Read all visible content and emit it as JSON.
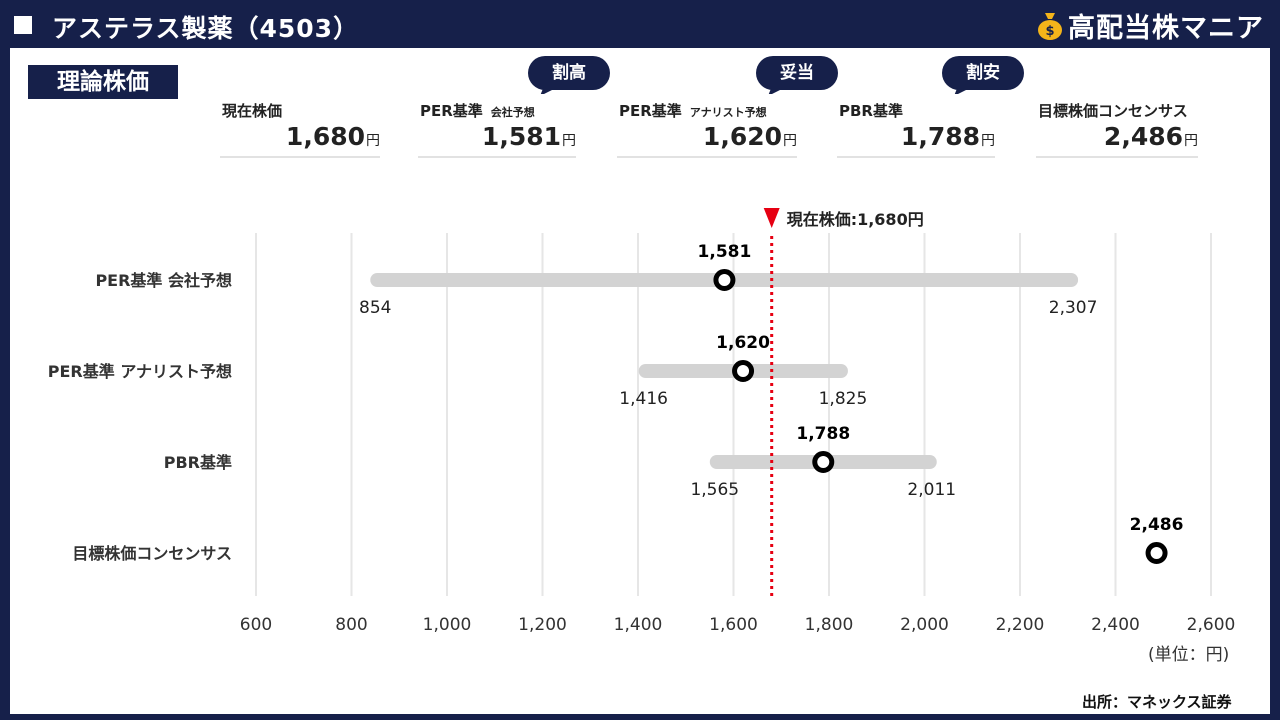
{
  "header": {
    "title": "アステラス製薬（4503）",
    "brand": "高配当株マニア",
    "brand_icon": "money-bag-icon"
  },
  "section_label": "理論株価",
  "metrics": [
    {
      "label": "現在株価",
      "sub": "",
      "value": "1,680",
      "unit": "円",
      "badge": ""
    },
    {
      "label": "PER基準",
      "sub": "会社予想",
      "value": "1,581",
      "unit": "円",
      "badge": "割高"
    },
    {
      "label": "PER基準",
      "sub": "アナリスト予想",
      "value": "1,620",
      "unit": "円",
      "badge": "妥当"
    },
    {
      "label": "PBR基準",
      "sub": "",
      "value": "1,788",
      "unit": "円",
      "badge": "割安"
    },
    {
      "label": "目標株価コンセンサス",
      "sub": "",
      "value": "2,486",
      "unit": "円",
      "badge": ""
    }
  ],
  "colors": {
    "navy": "#16204a",
    "range_bar": "#d3d3d3",
    "current_marker": "#e60012",
    "grid": "#e6e6e6"
  },
  "chart_data": {
    "type": "range",
    "xlim": [
      600,
      2600
    ],
    "xticks": [
      600,
      800,
      1000,
      1200,
      1400,
      1600,
      1800,
      2000,
      2200,
      2400,
      2600
    ],
    "xtick_labels": [
      "600",
      "800",
      "1,000",
      "1,200",
      "1,400",
      "1,600",
      "1,800",
      "2,000",
      "2,200",
      "2,400",
      "2,600"
    ],
    "current": {
      "value": 1680,
      "label": "現在株価:1,680円"
    },
    "series": [
      {
        "category": "PER基準 会社予想",
        "low": 854,
        "high": 2307,
        "point": 1581,
        "low_label": "854",
        "high_label": "2,307",
        "point_label": "1,581"
      },
      {
        "category": "PER基準 アナリスト予想",
        "low": 1416,
        "high": 1825,
        "point": 1620,
        "low_label": "1,416",
        "high_label": "1,825",
        "point_label": "1,620"
      },
      {
        "category": "PBR基準",
        "low": 1565,
        "high": 2011,
        "point": 1788,
        "low_label": "1,565",
        "high_label": "2,011",
        "point_label": "1,788"
      },
      {
        "category": "目標株価コンセンサス",
        "low": null,
        "high": null,
        "point": 2486,
        "low_label": "",
        "high_label": "",
        "point_label": "2,486"
      }
    ],
    "unit_label": "(単位：円)"
  },
  "source": "出所：マネックス証券"
}
